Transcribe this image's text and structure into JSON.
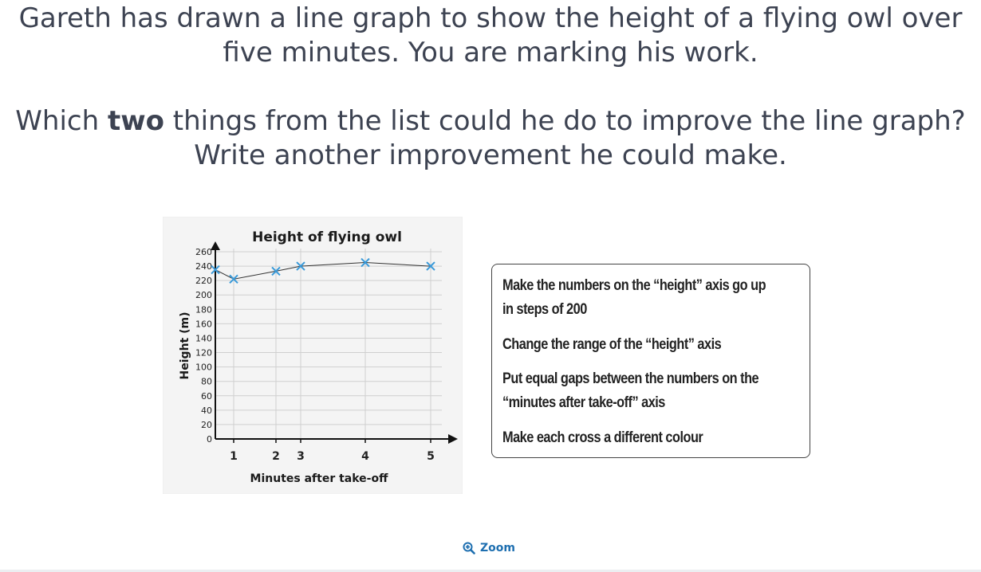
{
  "question": {
    "line1": "Gareth has drawn a line graph to show the height of a flying owl over",
    "line2": "five minutes. You are marking his work.",
    "line3_pre": "Which ",
    "line3_bold": "two",
    "line3_post": " things from the list could he do to improve the line graph?",
    "line4": "Write another improvement he could make."
  },
  "options": [
    "Make the numbers on the “height” axis go up",
    "in steps of 200",
    "Change the range of the “height” axis",
    "Put equal gaps between the numbers on the",
    "“minutes after take-off” axis",
    "Make each cross a different colour"
  ],
  "zoom": {
    "label": "Zoom",
    "icon": "zoom-in-icon"
  },
  "chart_data": {
    "type": "line",
    "title": "Height of flying owl",
    "xlabel": "Minutes after take-off",
    "ylabel": "Height (m)",
    "x_ticks": [
      "1",
      "2",
      "3",
      "4",
      "5"
    ],
    "y_ticks": [
      "0",
      "20",
      "40",
      "60",
      "80",
      "100",
      "120",
      "140",
      "160",
      "180",
      "200",
      "220",
      "240",
      "260"
    ],
    "ylim": [
      0,
      260
    ],
    "series": [
      {
        "x": [
          0,
          1,
          2,
          3,
          4,
          5
        ],
        "y": [
          235,
          222,
          233,
          240,
          245,
          240
        ]
      }
    ],
    "colors": {
      "marker": "#3a9ad9",
      "line": "#333333",
      "grid": "#cfcfcf"
    }
  }
}
